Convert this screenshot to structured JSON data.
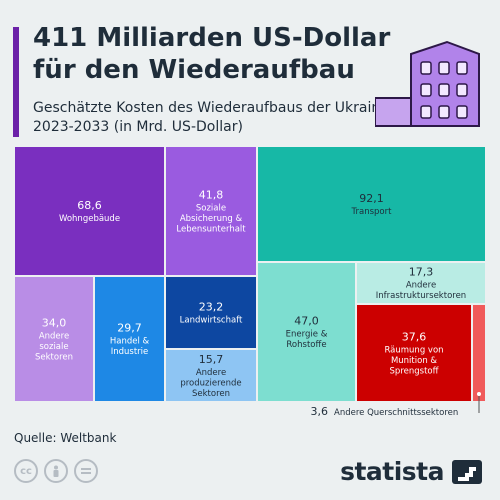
{
  "header": {
    "title": "411 Milliarden US-Dollar für den Wiederaufbau",
    "subtitle": "Geschätzte Kosten des Wiederaufbaus der Ukraine 2023-2033 (in Mrd. US-Dollar)"
  },
  "chart_data": {
    "type": "treemap",
    "title": "411 Milliarden US-Dollar für den Wiederaufbau",
    "subtitle": "Geschätzte Kosten des Wiederaufbaus der Ukraine 2023-2033 (in Mrd. US-Dollar)",
    "unit": "Mrd. US-Dollar",
    "total": 411,
    "items": [
      {
        "label": "Wohngebäude",
        "value": 68.6,
        "color": "#7a2fbf"
      },
      {
        "label": "Soziale Absicherung & Lebensunterhalt",
        "value": 41.8,
        "color": "#9a5be0"
      },
      {
        "label": "Andere soziale Sektoren",
        "value": 34.0,
        "color": "#b98de6"
      },
      {
        "label": "Handel & Industrie",
        "value": 29.7,
        "color": "#1e88e5"
      },
      {
        "label": "Landwirtschaft",
        "value": 23.2,
        "color": "#0d47a1"
      },
      {
        "label": "Andere produzierende Sektoren",
        "value": 15.7,
        "color": "#8ec5f3"
      },
      {
        "label": "Transport",
        "value": 92.1,
        "color": "#17b8a6"
      },
      {
        "label": "Energie & Rohstoffe",
        "value": 47.0,
        "color": "#7dded0"
      },
      {
        "label": "Andere Infrastruktursektoren",
        "value": 17.3,
        "color": "#b9ece4"
      },
      {
        "label": "Räumung von Munition & Sprengstoff",
        "value": 37.6,
        "color": "#cc0000"
      },
      {
        "label": "Andere Querschnittssektoren",
        "value": 3.6,
        "color": "#f05a5a"
      }
    ]
  },
  "footer": {
    "source": "Quelle: Weltbank",
    "brand": "statista",
    "license_icons": [
      "cc-icon",
      "person-icon",
      "equals-icon"
    ]
  }
}
